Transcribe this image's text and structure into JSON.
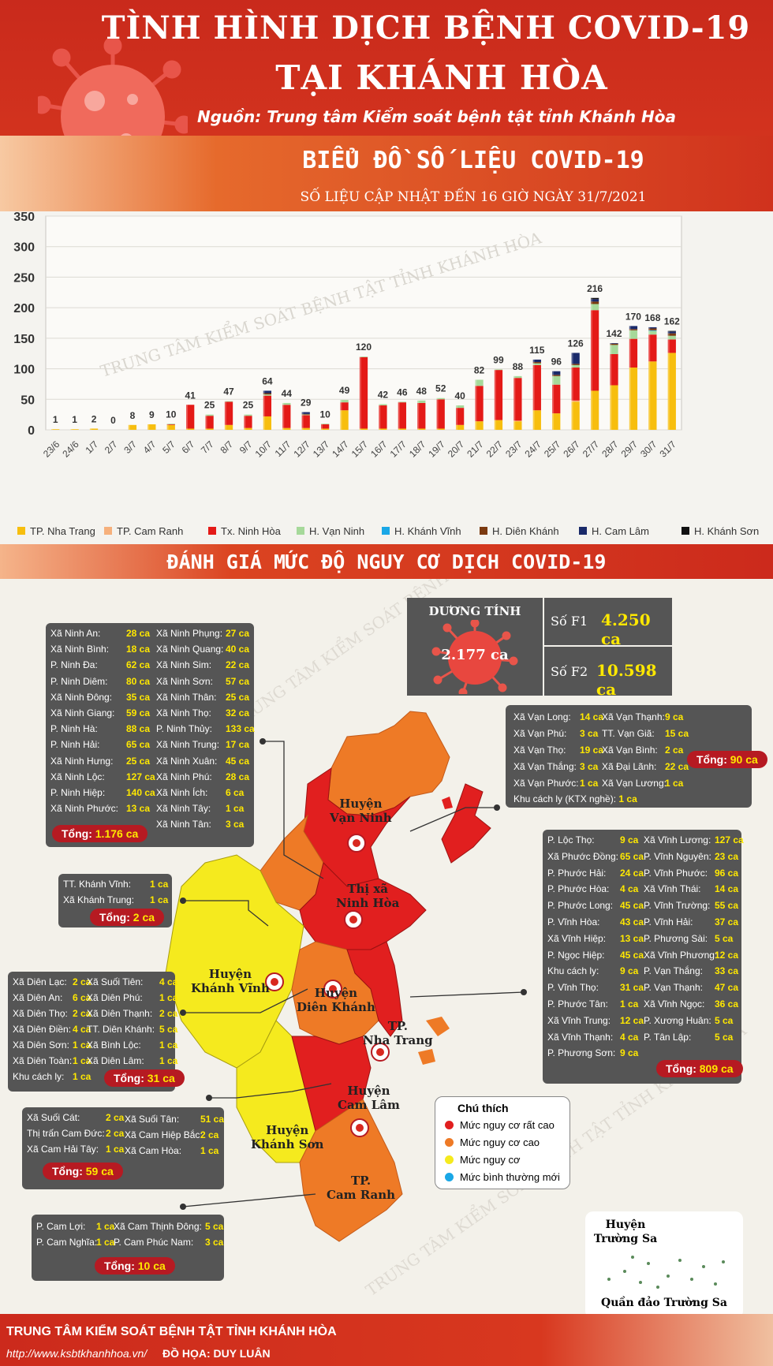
{
  "header": {
    "title_line1": "TÌNH HÌNH DỊCH BỆNH COVID-19",
    "title_line2": "TẠI KHÁNH HÒA",
    "source": "Nguồn: Trung tâm Kiểm soát bệnh tật tỉnh Khánh Hòa",
    "chart_title": "BIỂU ĐỒ SỐ LIỆU COVID-19",
    "update": "SỐ LIỆU CẬP NHẬT ĐẾN 16 GIỜ NGÀY 31/7/2021"
  },
  "chart_data": {
    "type": "bar",
    "stacked": true,
    "ylim": [
      0,
      350
    ],
    "yticks": [
      "0",
      "50",
      "100",
      "150",
      "200",
      "250",
      "300",
      "350"
    ],
    "categories": [
      "23/6",
      "24/6",
      "1/7",
      "2/7",
      "3/7",
      "4/7",
      "5/7",
      "6/7",
      "7/7",
      "8/7",
      "9/7",
      "10/7",
      "11/7",
      "12/7",
      "13/7",
      "14/7",
      "15/7",
      "16/7",
      "17/7",
      "18/7",
      "19/7",
      "20/7",
      "21/7",
      "22/7",
      "23/7",
      "24/7",
      "25/7",
      "26/7",
      "27/7",
      "28/7",
      "29/7",
      "30/7",
      "31/7"
    ],
    "totals": [
      "1",
      "1",
      "2",
      "0",
      "8",
      "9",
      "10",
      "41",
      "25",
      "47",
      "25",
      "64",
      "44",
      "29",
      "10",
      "49",
      "120",
      "42",
      "46",
      "48",
      "52",
      "40",
      "82",
      "99",
      "88",
      "115",
      "96",
      "126",
      "216",
      "142",
      "170",
      "168",
      "162"
    ],
    "series": [
      {
        "name": "TP. Nha Trang",
        "color": "#f7be0e",
        "values": [
          1,
          1,
          2,
          0,
          8,
          9,
          8,
          2,
          2,
          8,
          3,
          22,
          3,
          3,
          2,
          32,
          2,
          2,
          2,
          2,
          2,
          8,
          14,
          16,
          14,
          32,
          27,
          46,
          64,
          73,
          102,
          112,
          126
        ]
      },
      {
        "name": "TP. Cam Ranh",
        "color": "#f6b07c",
        "values": [
          0,
          0,
          0,
          0,
          0,
          0,
          0,
          0,
          0,
          0,
          0,
          0,
          0,
          0,
          0,
          0,
          0,
          0,
          0,
          0,
          0,
          0,
          0,
          0,
          1,
          0,
          0,
          2,
          0,
          0,
          0,
          0,
          0
        ]
      },
      {
        "name": "Tx. Ninh Hòa",
        "color": "#e41a17",
        "values": [
          0,
          0,
          0,
          0,
          0,
          0,
          1,
          39,
          21,
          38,
          20,
          34,
          38,
          21,
          7,
          13,
          117,
          38,
          43,
          42,
          48,
          28,
          58,
          82,
          70,
          74,
          47,
          54,
          132,
          51,
          47,
          44,
          22
        ]
      },
      {
        "name": "H. Vạn Ninh",
        "color": "#a6d99a",
        "values": [
          0,
          0,
          0,
          0,
          0,
          0,
          1,
          0,
          2,
          1,
          2,
          2,
          3,
          1,
          1,
          4,
          1,
          2,
          1,
          4,
          2,
          4,
          10,
          1,
          3,
          3,
          14,
          4,
          10,
          15,
          14,
          6,
          6
        ]
      },
      {
        "name": "H. Khánh Vĩnh",
        "color": "#1aa7e6",
        "values": [
          0,
          0,
          0,
          0,
          0,
          0,
          0,
          0,
          0,
          0,
          0,
          0,
          0,
          0,
          0,
          0,
          0,
          0,
          0,
          0,
          0,
          0,
          0,
          0,
          0,
          0,
          0,
          0,
          0,
          0,
          0,
          1,
          0
        ]
      },
      {
        "name": "H. Diên Khánh",
        "color": "#7b3a10",
        "values": [
          0,
          0,
          0,
          0,
          0,
          0,
          0,
          0,
          0,
          0,
          0,
          2,
          0,
          1,
          0,
          0,
          0,
          0,
          0,
          0,
          0,
          0,
          0,
          0,
          0,
          2,
          2,
          2,
          4,
          2,
          2,
          3,
          4
        ]
      },
      {
        "name": "H. Cam Lâm",
        "color": "#1a2a6a",
        "values": [
          0,
          0,
          0,
          0,
          0,
          0,
          0,
          0,
          0,
          0,
          0,
          4,
          0,
          3,
          0,
          0,
          0,
          0,
          0,
          0,
          0,
          0,
          0,
          0,
          0,
          4,
          6,
          18,
          4,
          1,
          5,
          2,
          3
        ]
      },
      {
        "name": "H. Khánh Sơn",
        "color": "#111111",
        "values": [
          0,
          0,
          0,
          0,
          0,
          0,
          0,
          0,
          0,
          0,
          0,
          0,
          0,
          0,
          0,
          0,
          0,
          0,
          0,
          0,
          0,
          0,
          0,
          0,
          0,
          0,
          0,
          0,
          2,
          0,
          0,
          0,
          1
        ]
      }
    ]
  },
  "colors": {
    "header_red": "#cc2a1c",
    "risk_very_high": "#e11f1f",
    "risk_high": "#ee7a26",
    "risk": "#f5ea1e",
    "risk_normal": "#1aa7e6"
  },
  "section2_title": "ĐÁNH GIÁ MỨC ĐỘ NGUY CƠ DỊCH COVID-19",
  "stats": {
    "positive_label": "DƯƠNG TÍNH",
    "positive_value": "2.177 ca",
    "f1_label": "Số F1",
    "f1_value": "4.250 ca",
    "f2_label": "Số F2",
    "f2_value": "10.598 ca"
  },
  "ninh_hoa": {
    "col1": [
      [
        "Xã Ninh An:",
        "28 ca"
      ],
      [
        "Xã Ninh Bình:",
        "18 ca"
      ],
      [
        "P. Ninh Đa:",
        "62 ca"
      ],
      [
        "P. Ninh Diêm:",
        "80 ca"
      ],
      [
        "Xã Ninh Đông:",
        "35 ca"
      ],
      [
        "Xã Ninh Giang:",
        "59 ca"
      ],
      [
        "P. Ninh Hà:",
        "88 ca"
      ],
      [
        "P. Ninh Hải:",
        "65 ca"
      ],
      [
        "Xã Ninh Hưng:",
        "25 ca"
      ],
      [
        "Xã Ninh Lộc:",
        "127 ca"
      ],
      [
        "P. Ninh Hiệp:",
        "140 ca"
      ],
      [
        "Xã Ninh Phước:",
        "13 ca"
      ]
    ],
    "col2": [
      [
        "Xã Ninh Phụng:",
        "27 ca"
      ],
      [
        "Xã Ninh Quang:",
        "40 ca"
      ],
      [
        "Xã Ninh Sim:",
        "22 ca"
      ],
      [
        "Xã Ninh Sơn:",
        "57 ca"
      ],
      [
        "Xã Ninh Thân:",
        "25 ca"
      ],
      [
        "Xã Ninh Thọ:",
        "32 ca"
      ],
      [
        "P. Ninh Thủy:",
        "133 ca"
      ],
      [
        "Xã Ninh Trung:",
        "17 ca"
      ],
      [
        "Xã Ninh Xuân:",
        "45 ca"
      ],
      [
        "Xã Ninh Phú:",
        "28 ca"
      ],
      [
        "Xã Ninh Ích:",
        "6 ca"
      ],
      [
        "Xã Ninh Tây:",
        "1 ca"
      ],
      [
        "Xã Ninh Tân:",
        "3 ca"
      ]
    ],
    "total_label": "Tổng:",
    "total_value": "1.176 ca"
  },
  "van_ninh": {
    "col1": [
      [
        "Xã Vạn Long:",
        "14 ca"
      ],
      [
        "Xã Vạn Phú:",
        "3 ca"
      ],
      [
        "Xã Vạn Thọ:",
        "19 ca"
      ],
      [
        "Xã Vạn Thắng:",
        "3 ca"
      ],
      [
        "Xã Vạn Phước:",
        "1 ca"
      ]
    ],
    "col2": [
      [
        "Xã Vạn Thạnh:",
        "9 ca"
      ],
      [
        "TT. Vạn Giã:",
        "15 ca"
      ],
      [
        "Xã Vạn Bình:",
        "2 ca"
      ],
      [
        "Xã Đại Lãnh:",
        "22 ca"
      ],
      [
        "Xã Vạn Lương:",
        "1 ca"
      ]
    ],
    "extra_label": "Khu cách ly (KTX nghề):",
    "extra_value": "1 ca",
    "total_label": "Tổng:",
    "total_value": "90 ca"
  },
  "khanh_vinh": {
    "rows": [
      [
        "TT. Khánh Vĩnh:",
        "1 ca"
      ],
      [
        "Xã Khánh Trung:",
        "1 ca"
      ]
    ],
    "total_label": "Tổng:",
    "total_value": "2 ca"
  },
  "nha_trang": {
    "col1": [
      [
        "P. Lộc Thọ:",
        "9 ca"
      ],
      [
        "Xã Phước Đồng:",
        "65 ca"
      ],
      [
        "P. Phước Hải:",
        "24 ca"
      ],
      [
        "P. Phước Hòa:",
        "4 ca"
      ],
      [
        "P. Phước Long:",
        "45 ca"
      ],
      [
        "P. Vĩnh Hòa:",
        "43 ca"
      ],
      [
        "Xã Vĩnh Hiệp:",
        "13 ca"
      ],
      [
        "P. Ngọc Hiệp:",
        "45 ca"
      ],
      [
        "Khu cách ly:",
        "9 ca"
      ],
      [
        "P. Vĩnh Thọ:",
        "31 ca"
      ],
      [
        "P. Phước Tân:",
        "1 ca"
      ],
      [
        "Xã Vĩnh Trung:",
        "12 ca"
      ],
      [
        "Xã Vĩnh Thạnh:",
        "4 ca"
      ],
      [
        "P. Phương Sơn:",
        "9 ca"
      ]
    ],
    "col2": [
      [
        "Xã Vĩnh Lương:",
        "127 ca"
      ],
      [
        "P. Vĩnh Nguyên:",
        "23 ca"
      ],
      [
        "P. Vĩnh Phước:",
        "96 ca"
      ],
      [
        "Xã Vĩnh Thái:",
        "14 ca"
      ],
      [
        "P. Vĩnh Trường:",
        "55 ca"
      ],
      [
        "P. Vĩnh Hải:",
        "37 ca"
      ],
      [
        "P. Phương Sài:",
        "5 ca"
      ],
      [
        "Xã Vĩnh Phương:",
        "12 ca"
      ],
      [
        "P. Vạn Thắng:",
        "33 ca"
      ],
      [
        "P. Vạn Thạnh:",
        "47 ca"
      ],
      [
        "Xã Vĩnh Ngọc:",
        "36 ca"
      ],
      [
        "P. Xương Huân:",
        "5 ca"
      ],
      [
        "P. Tân Lập:",
        "5 ca"
      ]
    ],
    "total_label": "Tổng:",
    "total_value": "809 ca"
  },
  "dien_khanh": {
    "col1": [
      [
        "Xã Diên Lạc:",
        "2 ca"
      ],
      [
        "Xã Diên An:",
        "6 ca"
      ],
      [
        "Xã Diên Thọ:",
        "2 ca"
      ],
      [
        "Xã Diên Điền:",
        "4 ca"
      ],
      [
        "Xã Diên Sơn:",
        "1 ca"
      ],
      [
        "Xã Diên Toàn:",
        "1 ca"
      ],
      [
        "Khu cách ly:",
        "1 ca"
      ]
    ],
    "col2": [
      [
        "Xã Suối Tiên:",
        "4 ca"
      ],
      [
        "Xã Diên Phú:",
        "1 ca"
      ],
      [
        "Xã Diên Thạnh:",
        "2 ca"
      ],
      [
        "TT. Diên Khánh:",
        "5 ca"
      ],
      [
        "Xã Bình Lộc:",
        "1 ca"
      ],
      [
        "Xã Diên Lâm:",
        "1 ca"
      ]
    ],
    "total_label": "Tổng:",
    "total_value": "31 ca"
  },
  "cam_lam": {
    "col1": [
      [
        "Xã Suối Cát:",
        "2 ca"
      ],
      [
        "Thị trấn Cam Đức:",
        "2 ca"
      ],
      [
        "Xã Cam Hải Tây:",
        "1 ca"
      ]
    ],
    "col2": [
      [
        "Xã Suối Tân:",
        "51 ca"
      ],
      [
        "Xã Cam Hiệp Bắc:",
        "2 ca"
      ],
      [
        "Xã Cam Hòa:",
        "1 ca"
      ]
    ],
    "total_label": "Tổng:",
    "total_value": "59 ca"
  },
  "cam_ranh": {
    "col1": [
      [
        "P. Cam Lợi:",
        "1 ca"
      ],
      [
        "P. Cam Nghĩa:",
        "1 ca"
      ]
    ],
    "col2": [
      [
        "Xã Cam Thịnh Đông:",
        "5 ca"
      ],
      [
        "P. Cam Phúc Nam:",
        "3 ca"
      ]
    ],
    "total_label": "Tổng:",
    "total_value": "10 ca"
  },
  "map_labels": {
    "van_ninh": "Huyện\nVạn Ninh",
    "ninh_hoa": "Thị xã\nNinh Hòa",
    "khanh_vinh": "Huyện\nKhánh Vĩnh",
    "dien_khanh": "Huyện\nDiên Khánh",
    "nha_trang": "TP.\nNha Trang",
    "cam_lam": "Huyện\nCam Lâm",
    "khanh_son": "Huyện\nKhánh Sơn",
    "cam_ranh": "TP.\nCam Ranh"
  },
  "legend": {
    "title": "Chú thích",
    "items": [
      "Mức nguy cơ rất cao",
      "Mức nguy cơ cao",
      "Mức nguy cơ",
      "Mức bình thường mới"
    ]
  },
  "truong_sa": {
    "title_line1": "Huyện",
    "title_line2": "Trường Sa",
    "caption": "Quần đảo Trường Sa"
  },
  "watermark": "TRUNG TÂM KIỂM SOÁT BỆNH TẬT TỈNH KHÁNH HÒA",
  "footer": {
    "org": "TRUNG TÂM KIỂM SOÁT BỆNH TẬT TỈNH KHÁNH HÒA",
    "url": "http://www.ksbtkhanhhoa.vn/",
    "design": "ĐỒ HỌA: DUY LUÂN"
  }
}
